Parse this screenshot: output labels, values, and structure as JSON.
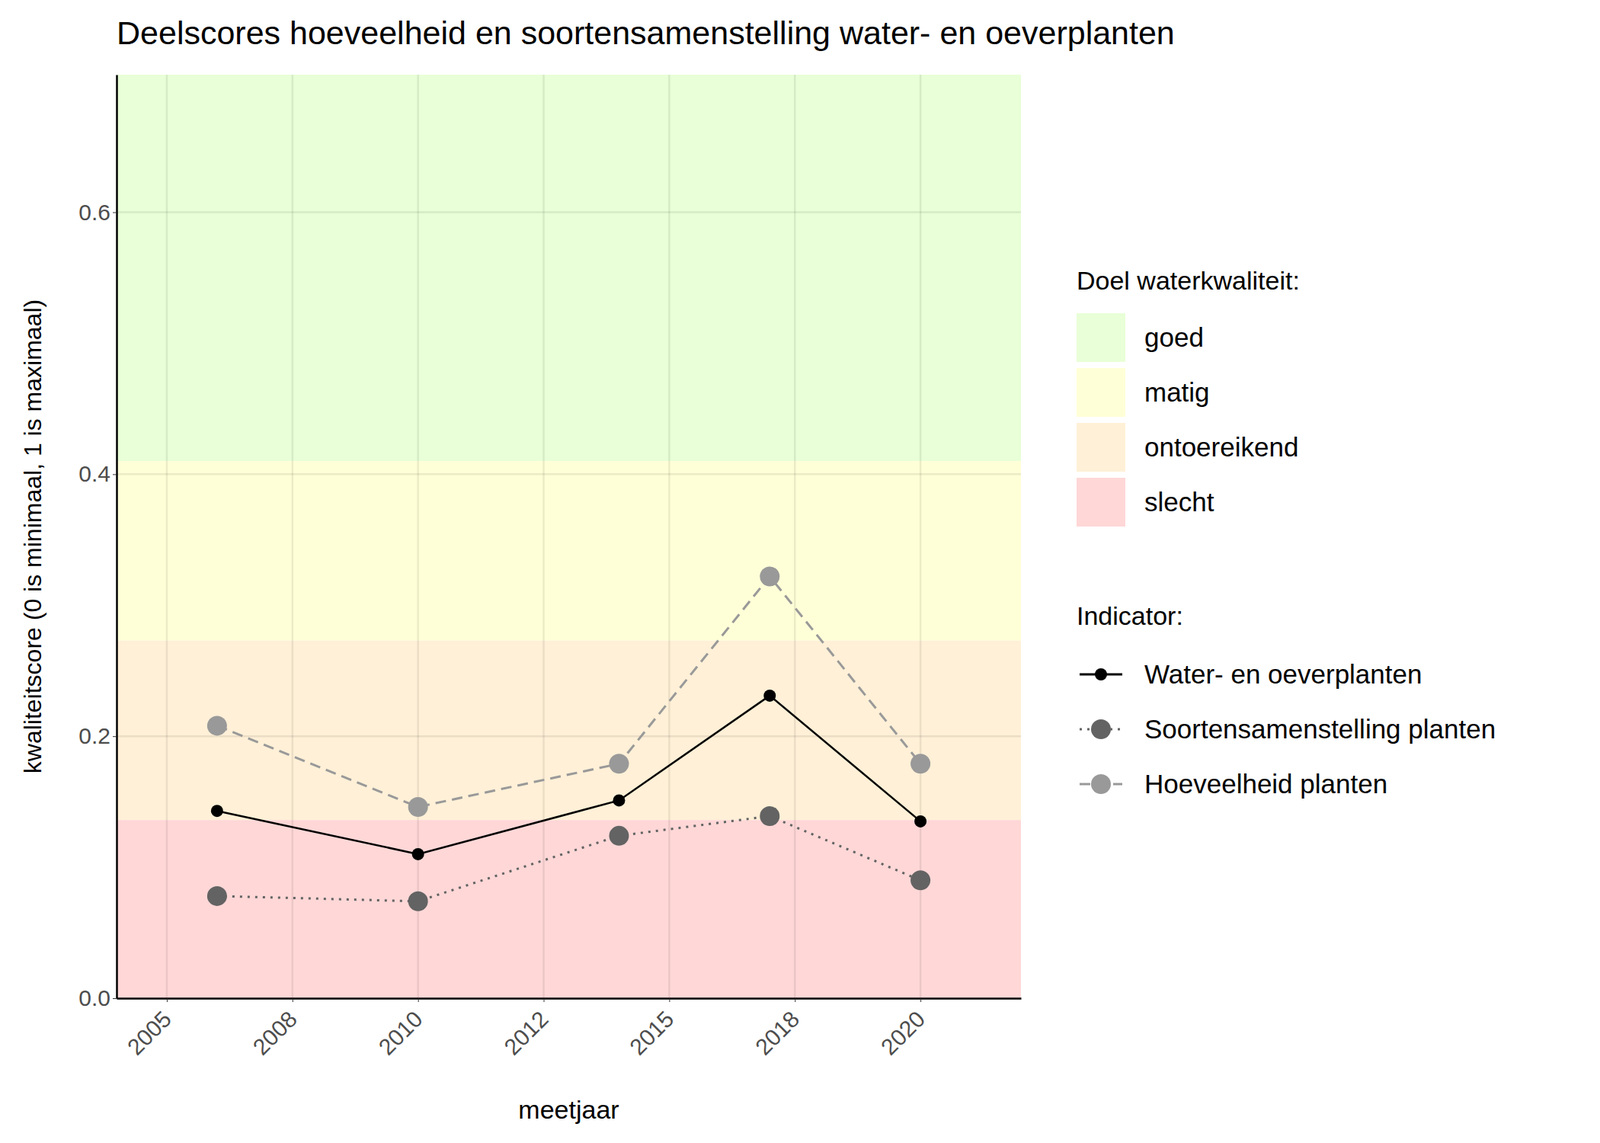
{
  "chart_data": {
    "type": "line",
    "title": "Deelscores hoeveelheid en soortensamenstelling water- en oeverplanten",
    "x_label": "meetjaar",
    "y_label": "kwaliteitscore (0 is minimaal, 1 is maximaal)",
    "x": [
      2006,
      2010,
      2014,
      2017,
      2020
    ],
    "series": [
      {
        "name": "Water- en oeverplanten",
        "color": "#000000",
        "line_style": "solid",
        "marker": "circle",
        "values": [
          0.143,
          0.11,
          0.151,
          0.231,
          0.135
        ]
      },
      {
        "name": "Soortensamenstelling planten",
        "color": "#636363",
        "line_style": "dotted",
        "marker": "circle",
        "values": [
          0.078,
          0.074,
          0.124,
          0.139,
          0.09
        ]
      },
      {
        "name": "Hoeveelheid planten",
        "color": "#999999",
        "line_style": "dashed",
        "marker": "circle",
        "values": [
          0.208,
          0.146,
          0.179,
          0.322,
          0.179
        ]
      }
    ],
    "legend_title": "Indicator:",
    "bands_title": "Doel waterkwaliteit:",
    "bands": [
      {
        "label": "goed",
        "color": "#e8ffd7",
        "from": 0.41,
        "to": 0.705
      },
      {
        "label": "matig",
        "color": "#ffffd7",
        "from": 0.273,
        "to": 0.41
      },
      {
        "label": "ontoereikend",
        "color": "#fff0d7",
        "from": 0.136,
        "to": 0.273
      },
      {
        "label": "slecht",
        "color": "#ffd7d7",
        "from": 0,
        "to": 0.136
      }
    ],
    "xlim": [
      2004,
      2022
    ],
    "xticks": [
      2005,
      {
        "value": 2007.5,
        "label": "2008"
      },
      2010,
      {
        "value": 2012.5,
        "label": "2012"
      },
      2015,
      {
        "value": 2017.5,
        "label": "2018"
      },
      2020
    ],
    "ylim": [
      0,
      0.705
    ],
    "yticks": [
      {
        "value": 0,
        "label": "0.0"
      },
      0.2,
      0.4,
      0.6
    ],
    "grid": true,
    "legend": "right"
  }
}
